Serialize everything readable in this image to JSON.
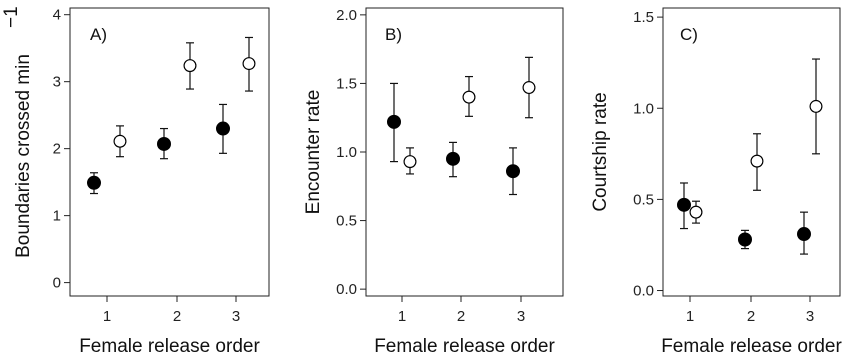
{
  "chart_data": [
    {
      "type": "scatter",
      "panel_label": "A)",
      "xlabel": "Female release order",
      "ylabel": "Boundaries crossed min",
      "ylabel_superscript": "−1",
      "categories": [
        "1",
        "2",
        "3"
      ],
      "ylim": [
        -0.2,
        4.1
      ],
      "yticks": [
        "0",
        "1",
        "2",
        "3",
        "4"
      ],
      "grid": false,
      "series": [
        {
          "marker": "filled",
          "values": [
            1.49,
            2.07,
            2.3
          ],
          "lower": [
            1.33,
            1.85,
            1.93
          ],
          "upper": [
            1.64,
            2.3,
            2.66
          ]
        },
        {
          "marker": "open",
          "values": [
            2.11,
            3.24,
            3.27
          ],
          "lower": [
            1.88,
            2.89,
            2.86
          ],
          "upper": [
            2.34,
            3.58,
            3.66
          ]
        }
      ]
    },
    {
      "type": "scatter",
      "panel_label": "B)",
      "xlabel": "Female release order",
      "ylabel": "Encounter rate",
      "categories": [
        "1",
        "2",
        "3"
      ],
      "ylim": [
        -0.05,
        2.05
      ],
      "yticks": [
        "0.0",
        "0.5",
        "1.0",
        "1.5",
        "2.0"
      ],
      "grid": false,
      "series": [
        {
          "marker": "filled",
          "values": [
            1.22,
            0.95,
            0.86
          ],
          "lower": [
            0.93,
            0.82,
            0.69
          ],
          "upper": [
            1.5,
            1.07,
            1.03
          ]
        },
        {
          "marker": "open",
          "values": [
            0.93,
            1.4,
            1.47
          ],
          "lower": [
            0.84,
            1.26,
            1.25
          ],
          "upper": [
            1.03,
            1.55,
            1.69
          ]
        }
      ]
    },
    {
      "type": "scatter",
      "panel_label": "C)",
      "xlabel": "Female release order",
      "ylabel": "Courtship rate",
      "categories": [
        "1",
        "2",
        "3"
      ],
      "ylim": [
        -0.03,
        1.55
      ],
      "yticks": [
        "0.0",
        "0.5",
        "1.0",
        "1.5"
      ],
      "grid": false,
      "series": [
        {
          "marker": "filled",
          "values": [
            0.47,
            0.28,
            0.31
          ],
          "lower": [
            0.34,
            0.23,
            0.2
          ],
          "upper": [
            0.59,
            0.33,
            0.43
          ]
        },
        {
          "marker": "open",
          "values": [
            0.43,
            0.71,
            1.01
          ],
          "lower": [
            0.37,
            0.55,
            0.75
          ],
          "upper": [
            0.49,
            0.86,
            1.27
          ]
        }
      ]
    }
  ]
}
